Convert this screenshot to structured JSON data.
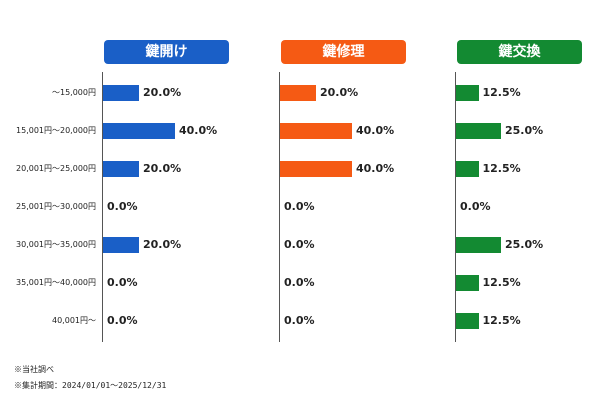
{
  "chart_data": {
    "type": "bar",
    "orientation": "horizontal",
    "title": "",
    "categories": [
      "〜15,000円",
      "15,001円〜20,000円",
      "20,001円〜25,000円",
      "25,001円〜30,000円",
      "30,001円〜35,000円",
      "35,001円〜40,000円",
      "40,001円〜"
    ],
    "series": [
      {
        "name": "鍵開け",
        "color": "#1a5fc7",
        "values": [
          20.0,
          40.0,
          20.0,
          0.0,
          20.0,
          0.0,
          0.0
        ],
        "labels": [
          "20.0%",
          "40.0%",
          "20.0%",
          "0.0%",
          "20.0%",
          "0.0%",
          "0.0%"
        ]
      },
      {
        "name": "鍵修理",
        "color": "#f55a14",
        "values": [
          20.0,
          40.0,
          40.0,
          0.0,
          0.0,
          0.0,
          0.0
        ],
        "labels": [
          "20.0%",
          "40.0%",
          "40.0%",
          "0.0%",
          "0.0%",
          "0.0%",
          "0.0%"
        ]
      },
      {
        "name": "鍵交換",
        "color": "#138a32",
        "values": [
          12.5,
          25.0,
          12.5,
          0.0,
          25.0,
          12.5,
          12.5
        ],
        "labels": [
          "12.5%",
          "25.0%",
          "12.5%",
          "0.0%",
          "25.0%",
          "12.5%",
          "12.5%"
        ]
      }
    ],
    "value_unit": "%",
    "grid": false,
    "legend": "none"
  },
  "footnotes": [
    "※当社調べ",
    "※集計期間：2024/01/01〜2025/12/31"
  ]
}
